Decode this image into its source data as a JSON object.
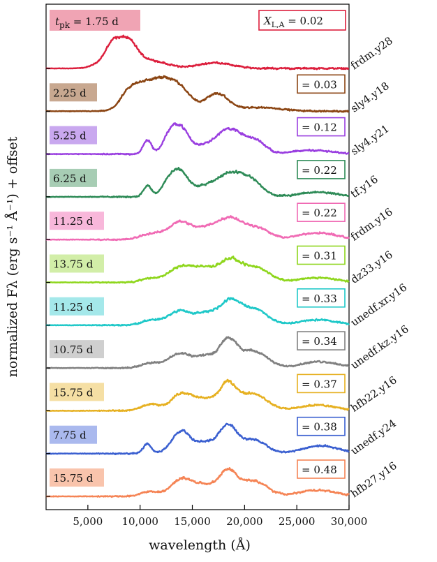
{
  "chart_data": {
    "type": "line",
    "xlabel": "wavelength (Å)",
    "ylabel": "normalized Fλ (erg s⁻¹ Å⁻¹) + offset",
    "xlim": [
      1000,
      30000
    ],
    "xticks": [
      5000,
      10000,
      15000,
      20000,
      25000,
      30000
    ],
    "xtick_labels": [
      "5,000",
      "10,000",
      "15,000",
      "20,000",
      "25,000",
      "30,000"
    ],
    "t_prefix": "t",
    "t_subscript": "pk",
    "x_prefix": "X",
    "x_subscript": "L,A",
    "series": [
      {
        "name": "frdm.y28",
        "time": "1.75 d",
        "xla": "0.02",
        "color": "#dc1e3c",
        "label_bg": "#f0a4b4",
        "features": [
          [
            6500,
            0.45,
            1000
          ],
          [
            7300,
            0.55,
            600
          ],
          [
            8700,
            0.9,
            900
          ],
          [
            17200,
            0.18,
            1600
          ],
          [
            11000,
            0.25,
            1500
          ]
        ]
      },
      {
        "name": "sly4.y18",
        "time": "2.25 d",
        "xla": "0.03",
        "color": "#8b4513",
        "label_bg": "#c8a890",
        "features": [
          [
            10300,
            0.85,
            1300
          ],
          [
            12600,
            0.8,
            1100
          ],
          [
            14200,
            0.45,
            900
          ],
          [
            17300,
            0.55,
            1100
          ],
          [
            21500,
            0.12,
            2000
          ],
          [
            8700,
            0.3,
            800
          ]
        ]
      },
      {
        "name": "sly4.y21",
        "time": "5.25 d",
        "xla": "0.12",
        "color": "#9a3fe0",
        "label_bg": "#c9a8ef",
        "features": [
          [
            10700,
            0.45,
            400
          ],
          [
            13800,
            0.85,
            800
          ],
          [
            12700,
            0.4,
            600
          ],
          [
            18600,
            0.8,
            1300
          ],
          [
            21200,
            0.35,
            900
          ],
          [
            26500,
            0.12,
            1800
          ],
          [
            16000,
            0.2,
            1000
          ]
        ]
      },
      {
        "name": "tf.y16",
        "time": "6.25 d",
        "xla": "0.22",
        "color": "#2e8b57",
        "label_bg": "#a7cdb4",
        "features": [
          [
            10700,
            0.35,
            400
          ],
          [
            13800,
            0.8,
            800
          ],
          [
            12600,
            0.35,
            600
          ],
          [
            18600,
            0.75,
            1300
          ],
          [
            20800,
            0.4,
            1000
          ],
          [
            27000,
            0.15,
            1800
          ],
          [
            16000,
            0.25,
            1000
          ]
        ]
      },
      {
        "name": "frdm.y16",
        "time": "11.25 d",
        "xla": "0.22",
        "color": "#f06ab4",
        "label_bg": "#f8b7da",
        "features": [
          [
            13800,
            0.55,
            1100
          ],
          [
            18600,
            0.65,
            1200
          ],
          [
            21200,
            0.35,
            1200
          ],
          [
            27000,
            0.22,
            1800
          ],
          [
            16300,
            0.3,
            1100
          ],
          [
            11000,
            0.18,
            1000
          ]
        ]
      },
      {
        "name": "dz33.y16",
        "time": "13.75 d",
        "xla": "0.31",
        "color": "#8ed61c",
        "label_bg": "#d2eea8",
        "features": [
          [
            14000,
            0.5,
            1200
          ],
          [
            18600,
            0.7,
            1100
          ],
          [
            21200,
            0.45,
            1200
          ],
          [
            27000,
            0.15,
            1800
          ],
          [
            16200,
            0.35,
            1000
          ],
          [
            11000,
            0.12,
            900
          ]
        ]
      },
      {
        "name": "unedf.xr.y16",
        "time": "11.25 d",
        "xla": "0.33",
        "color": "#1ec8c8",
        "label_bg": "#a4e8ea",
        "features": [
          [
            13800,
            0.45,
            1100
          ],
          [
            18600,
            0.75,
            1000
          ],
          [
            21000,
            0.5,
            1200
          ],
          [
            27000,
            0.17,
            1800
          ],
          [
            16300,
            0.35,
            1000
          ],
          [
            11000,
            0.15,
            900
          ]
        ]
      },
      {
        "name": "unedf.kz.y16",
        "time": "10.75 d",
        "xla": "0.34",
        "color": "#808080",
        "label_bg": "#cfcfcf",
        "features": [
          [
            13800,
            0.45,
            1100
          ],
          [
            18400,
            0.85,
            800
          ],
          [
            20800,
            0.55,
            1300
          ],
          [
            27200,
            0.2,
            1800
          ],
          [
            16300,
            0.35,
            1000
          ],
          [
            11000,
            0.15,
            900
          ]
        ]
      },
      {
        "name": "hfb22.y16",
        "time": "15.75 d",
        "xla": "0.37",
        "color": "#e6b020",
        "label_bg": "#f5dfa4",
        "features": [
          [
            14000,
            0.55,
            1000
          ],
          [
            18400,
            0.8,
            800
          ],
          [
            20800,
            0.55,
            1300
          ],
          [
            27000,
            0.18,
            1800
          ],
          [
            16300,
            0.35,
            1000
          ],
          [
            11000,
            0.2,
            900
          ]
        ]
      },
      {
        "name": "unedf.y24",
        "time": "7.75 d",
        "xla": "0.38",
        "color": "#3a5fd0",
        "label_bg": "#aab9ee",
        "features": [
          [
            10700,
            0.3,
            400
          ],
          [
            13900,
            0.7,
            900
          ],
          [
            18400,
            0.85,
            800
          ],
          [
            20800,
            0.45,
            1200
          ],
          [
            27300,
            0.25,
            1700
          ],
          [
            16300,
            0.35,
            1000
          ]
        ]
      },
      {
        "name": "hfb27.y16",
        "time": "15.75 d",
        "xla": "0.48",
        "color": "#f58455",
        "label_bg": "#f9c4ac",
        "features": [
          [
            14000,
            0.55,
            1000
          ],
          [
            18400,
            0.75,
            800
          ],
          [
            20800,
            0.5,
            1300
          ],
          [
            27000,
            0.2,
            1800
          ],
          [
            16300,
            0.35,
            1000
          ],
          [
            11000,
            0.15,
            900
          ]
        ]
      }
    ]
  }
}
